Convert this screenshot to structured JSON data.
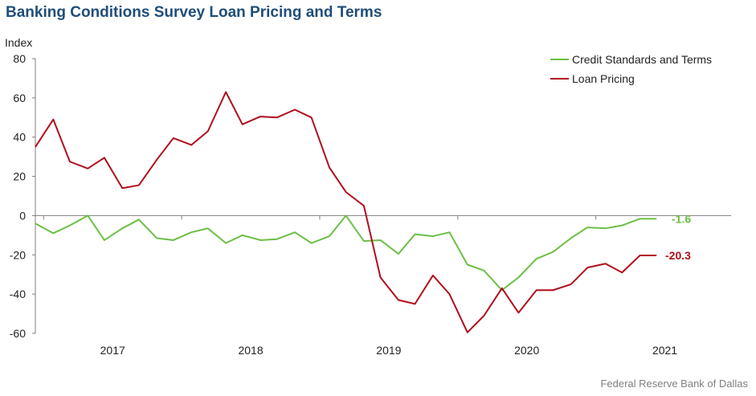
{
  "title": "Banking Conditions Survey Loan Pricing and Terms",
  "source": "Federal Reserve Bank of Dallas",
  "chart_data": {
    "type": "line",
    "ylabel": "Index",
    "ylim": [
      -60,
      80
    ],
    "yticks": [
      80,
      60,
      40,
      20,
      0,
      -20,
      -40,
      -60
    ],
    "x_tick_labels": [
      "2017",
      "2018",
      "2019",
      "2020",
      "2021"
    ],
    "x_tick_label_positions": [
      2017.0,
      2018.0,
      2019.0,
      2020.0,
      2021.0
    ],
    "grid": false,
    "legend": "top-right",
    "series": [
      {
        "name": "Credit Standards and Terms",
        "color": "#6cbf45",
        "end_label": "-1.6",
        "x": [
          2016.44,
          2016.57,
          2016.69,
          2016.82,
          2016.94,
          2017.07,
          2017.19,
          2017.32,
          2017.44,
          2017.57,
          2017.69,
          2017.82,
          2017.94,
          2018.07,
          2018.19,
          2018.32,
          2018.44,
          2018.57,
          2018.69,
          2018.82,
          2018.94,
          2019.07,
          2019.19,
          2019.32,
          2019.44,
          2019.57,
          2019.69,
          2019.82,
          2019.94,
          2020.07,
          2020.19,
          2020.32,
          2020.44,
          2020.57,
          2020.69,
          2020.82,
          2020.94
        ],
        "values": [
          -4,
          -9,
          -5,
          0,
          -12.5,
          -6.5,
          -2,
          -11.5,
          -12.5,
          -8.5,
          -6.5,
          -14,
          -10,
          -12.5,
          -12,
          -8.5,
          -14,
          -10.5,
          0,
          -13,
          -12.5,
          -19.5,
          -9.5,
          -10.5,
          -8.5,
          -25,
          -28,
          -38,
          -31.5,
          -22,
          -18.5,
          -11.5,
          -6,
          -6.5,
          -5,
          -1.6,
          -1.6
        ]
      },
      {
        "name": "Loan Pricing",
        "color": "#b10e1c",
        "end_label": "-20.3",
        "x": [
          2016.44,
          2016.57,
          2016.69,
          2016.82,
          2016.94,
          2017.07,
          2017.19,
          2017.32,
          2017.44,
          2017.57,
          2017.69,
          2017.82,
          2017.94,
          2018.07,
          2018.19,
          2018.32,
          2018.44,
          2018.57,
          2018.69,
          2018.82,
          2018.94,
          2019.07,
          2019.19,
          2019.32,
          2019.44,
          2019.57,
          2019.69,
          2019.82,
          2019.94,
          2020.07,
          2020.19,
          2020.32,
          2020.44,
          2020.57,
          2020.69,
          2020.82,
          2020.94
        ],
        "values": [
          35,
          49,
          27.5,
          24,
          29.5,
          14,
          15.5,
          28.5,
          39.5,
          36,
          43,
          63,
          46.5,
          50.5,
          50,
          54,
          50,
          24.5,
          12,
          5,
          -31.5,
          -43,
          -45,
          -30.5,
          -40,
          -59.5,
          -51,
          -37,
          -49.5,
          -38,
          -38,
          -35,
          -26.5,
          -24.5,
          -29,
          -20.3,
          -20.3
        ]
      }
    ]
  }
}
